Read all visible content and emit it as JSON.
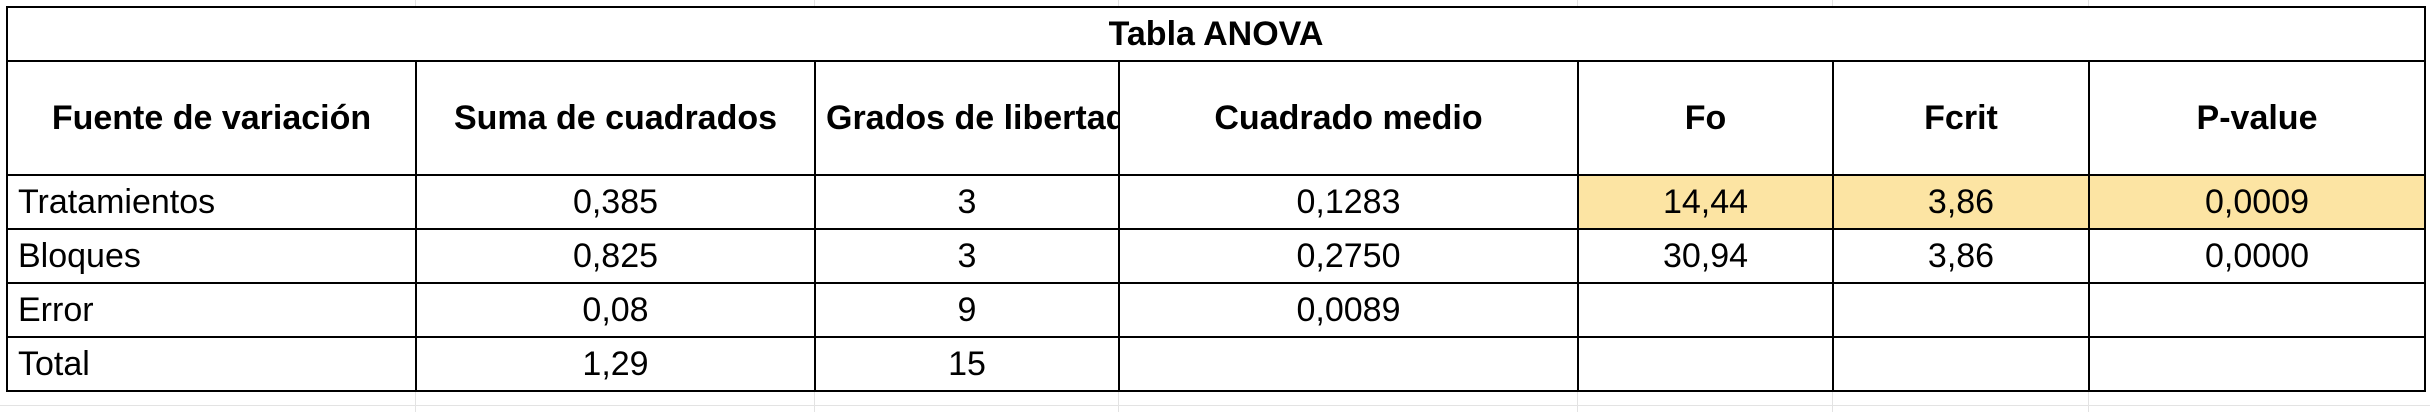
{
  "table": {
    "title": "Tabla ANOVA",
    "headers": [
      "Fuente de variación",
      "Suma de cuadrados",
      "Grados de libertad",
      "Cuadrado medio",
      "Fo",
      "Fcrit",
      "P-value"
    ],
    "rows": [
      [
        "Tratamientos",
        "0,385",
        "3",
        "0,1283",
        "14,44",
        "3,86",
        "0,0009"
      ],
      [
        "Bloques",
        "0,825",
        "3",
        "0,2750",
        "30,94",
        "3,86",
        "0,0000"
      ],
      [
        "Error",
        "0,08",
        "9",
        "0,0089",
        "",
        "",
        ""
      ],
      [
        "Total",
        "1,29",
        "15",
        "",
        "",
        "",
        ""
      ]
    ],
    "highlight_color": "#fce4a3"
  }
}
